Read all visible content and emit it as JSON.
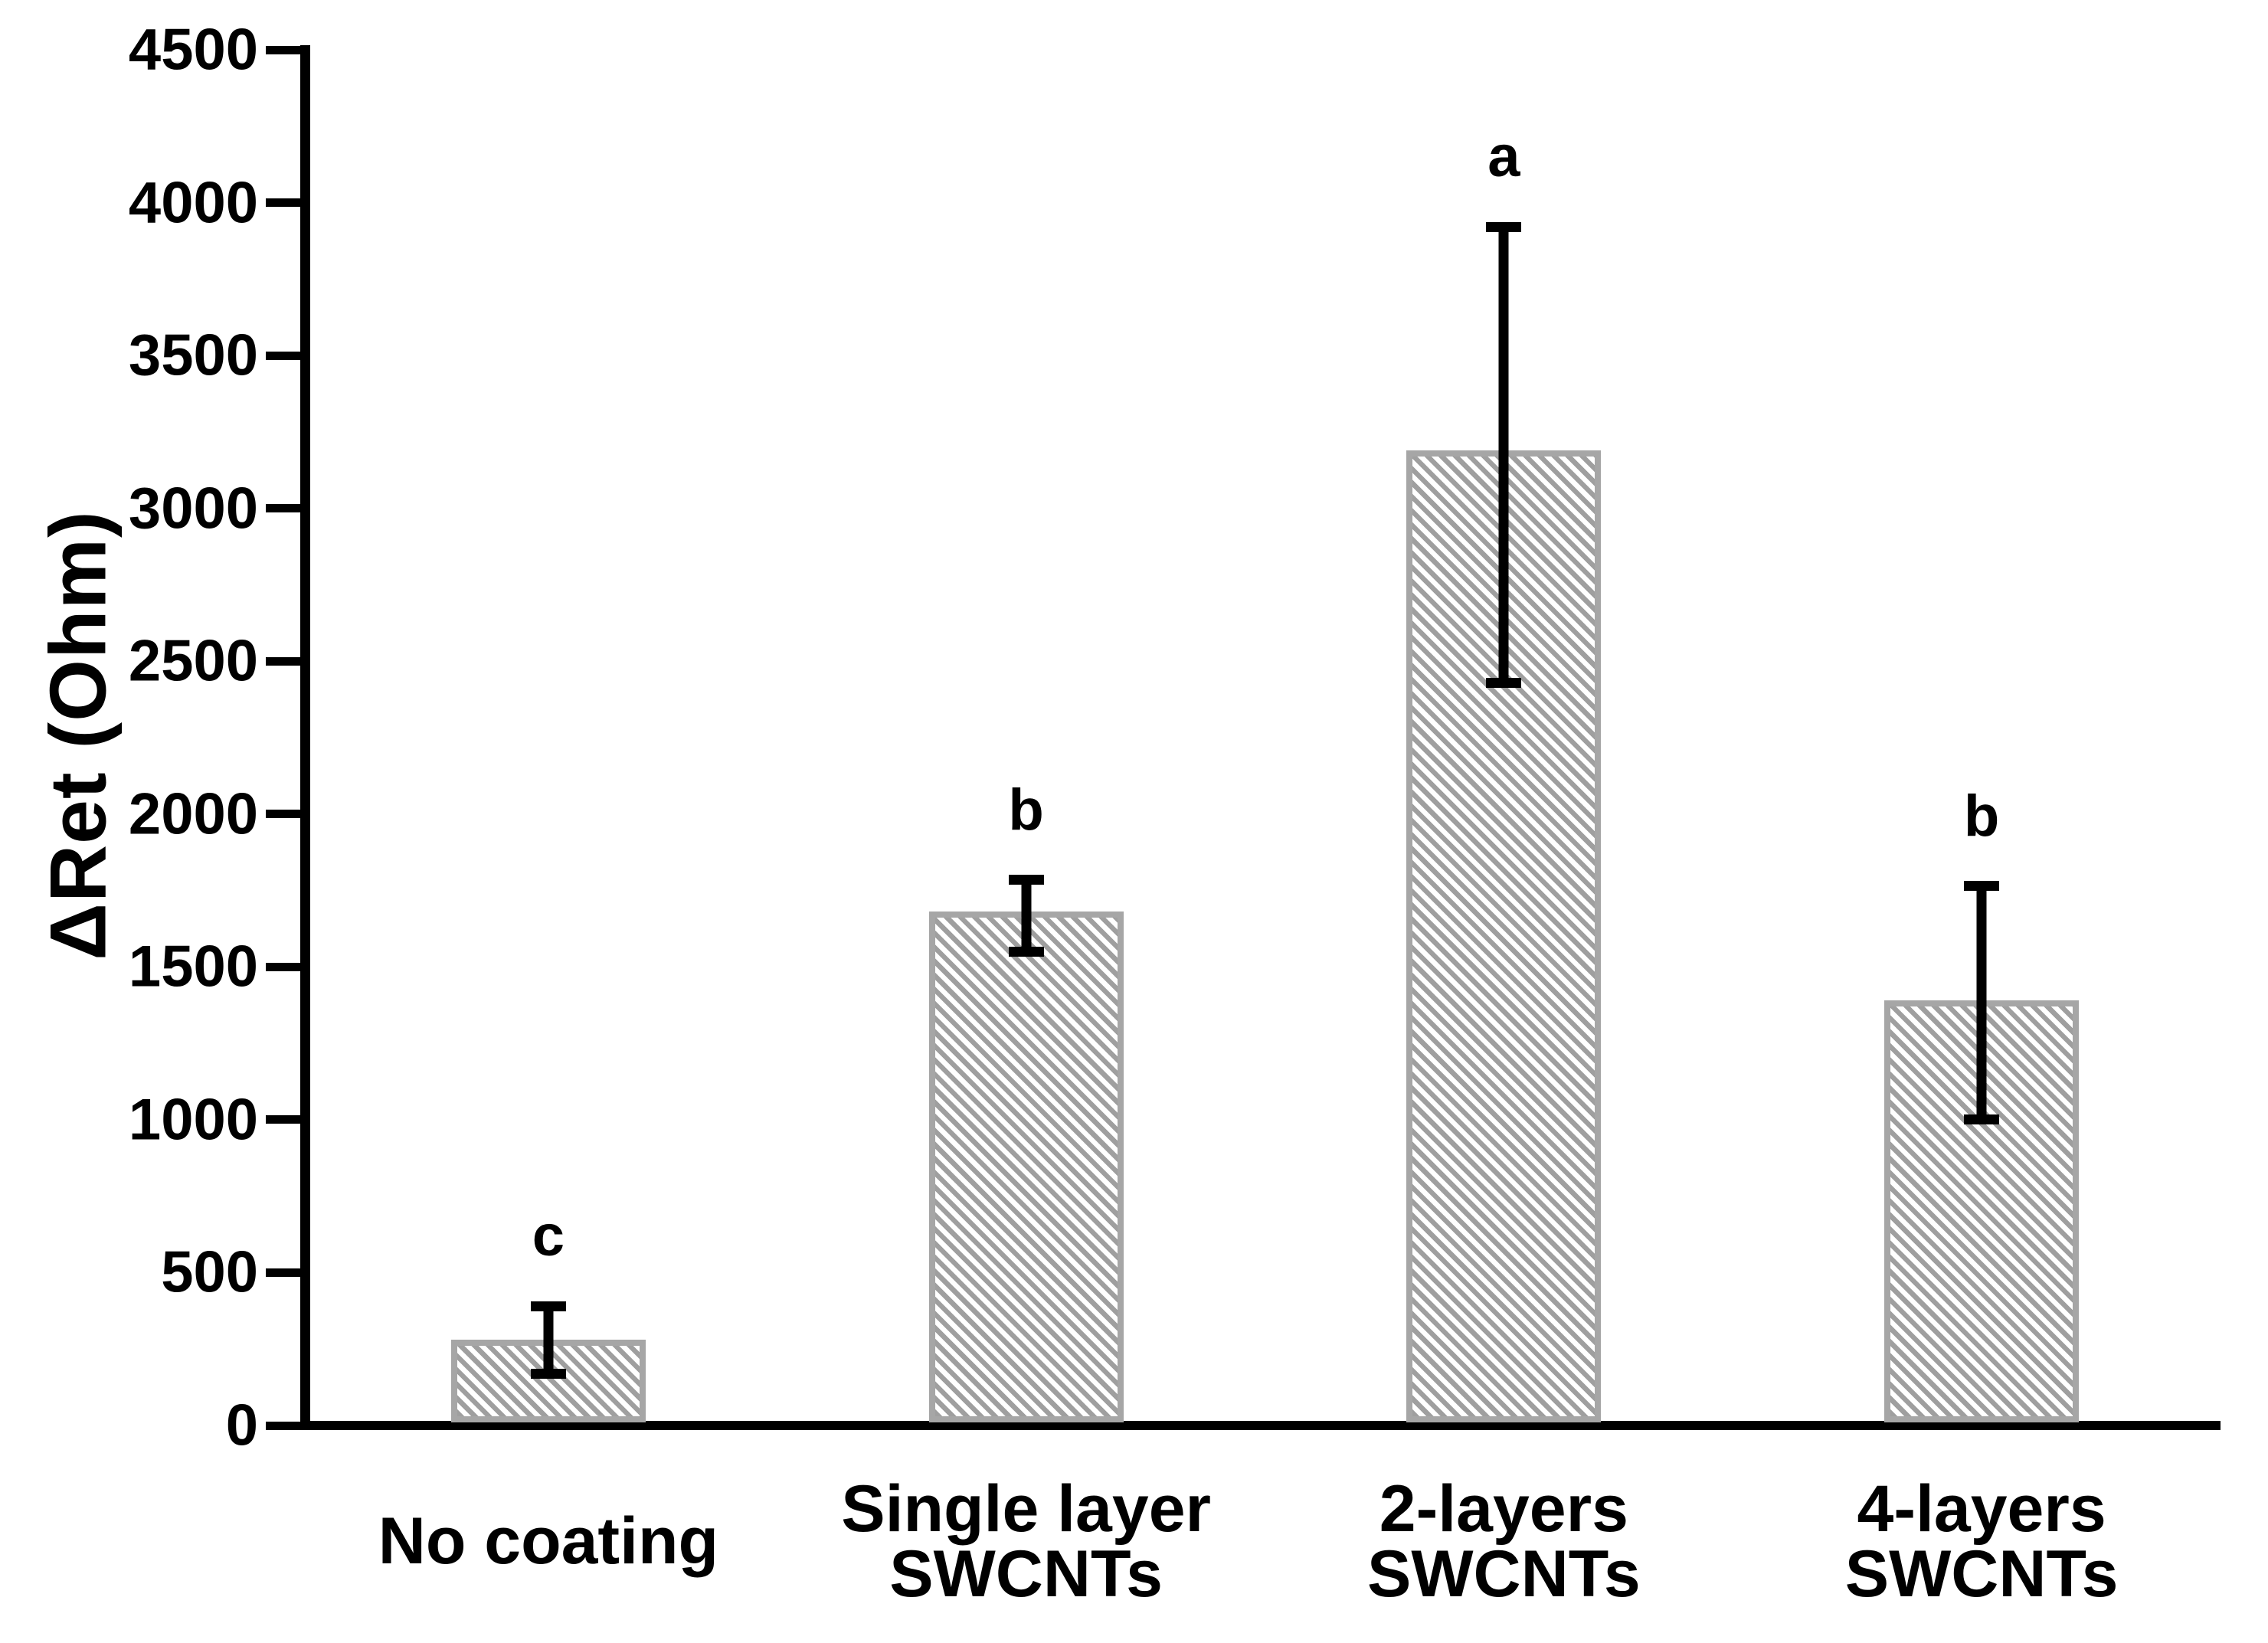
{
  "chart_data": {
    "type": "bar",
    "title": "",
    "xlabel": "",
    "ylabel": "ΔRet (Ohm)",
    "ylim": [
      0,
      4500
    ],
    "ytick_step": 500,
    "grid": false,
    "legend": false,
    "background": "#ffffff",
    "categories": [
      [
        "No coating"
      ],
      [
        "Single layer",
        "SWCNTs"
      ],
      [
        "2-layers",
        "SWCNTs"
      ],
      [
        "4-layers",
        "SWCNTs"
      ]
    ],
    "series": [
      {
        "name": "ΔRet",
        "values": [
          280,
          1680,
          3190,
          1390
        ],
        "error_upper_cap": [
          390,
          1785,
          3920,
          1765
        ],
        "error_lower_cap": [
          170,
          1550,
          2430,
          1000
        ]
      }
    ],
    "significance_letters": [
      "c",
      "b",
      "a",
      "b"
    ],
    "colors": {
      "bar_fill": "#ffffff",
      "bar_hatch": "#9f9f9f",
      "bar_border": "#a6a6a6",
      "axis": "#000000",
      "error_bar": "#000000",
      "text": "#000000"
    }
  }
}
